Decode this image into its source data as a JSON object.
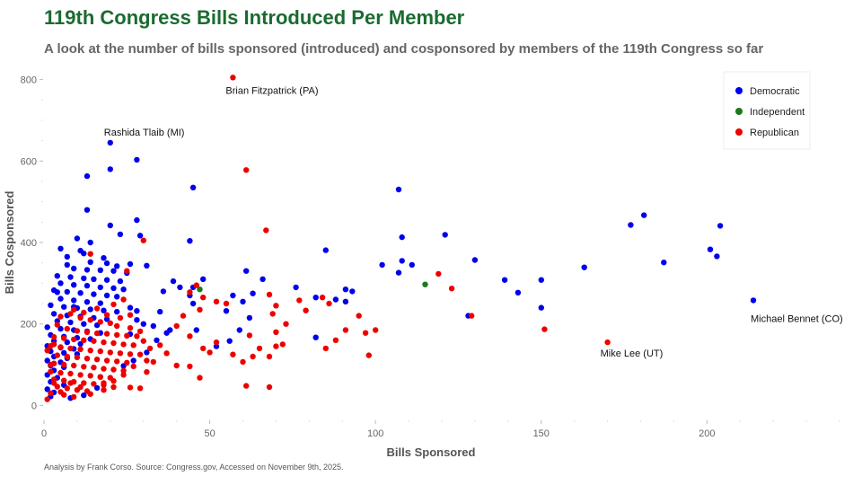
{
  "colors": {
    "title": "#1a6b2f",
    "Democratic": "#0000ee",
    "Independent": "#1a7a1a",
    "Republican": "#ee0000"
  },
  "chart_data": {
    "type": "scatter",
    "title": "119th Congress Bills Introduced Per Member",
    "subtitle": "A look at the number of bills sponsored (introduced) and cosponsored by members of the 119th Congress so far",
    "xlabel": "Bills Sponsored",
    "ylabel": "Bills Cosponsored",
    "xlim": [
      0,
      240
    ],
    "ylim": [
      -30,
      830
    ],
    "xticks": [
      0,
      50,
      100,
      150,
      200
    ],
    "yticks": [
      0,
      200,
      400,
      600,
      800
    ],
    "grid": false,
    "legend": {
      "position": "top-right",
      "entries": [
        "Democratic",
        "Independent",
        "Republican"
      ]
    },
    "caption": "Analysis by Frank Corso. Source: Congress.gov, Accessed on November 9th, 2025.",
    "annotations": [
      {
        "text": "Brian Fitzpatrick (PA)",
        "x": 57,
        "y": 805
      },
      {
        "text": "Rashida Tlaib (MI)",
        "x": 20,
        "y": 645
      },
      {
        "text": "Michael Bennet (CO)",
        "x": 214,
        "y": 258
      },
      {
        "text": "Mike Lee (UT)",
        "x": 170,
        "y": 155
      }
    ],
    "series": [
      {
        "name": "Democratic",
        "points": [
          [
            20,
            645
          ],
          [
            28,
            603
          ],
          [
            20,
            580
          ],
          [
            13,
            563
          ],
          [
            45,
            535
          ],
          [
            107,
            530
          ],
          [
            13,
            480
          ],
          [
            28,
            455
          ],
          [
            20,
            442
          ],
          [
            181,
            467
          ],
          [
            177,
            443
          ],
          [
            204,
            441
          ],
          [
            108,
            413
          ],
          [
            121,
            419
          ],
          [
            23,
            420
          ],
          [
            29,
            417
          ],
          [
            44,
            404
          ],
          [
            201,
            383
          ],
          [
            203,
            366
          ],
          [
            85,
            381
          ],
          [
            187,
            351
          ],
          [
            130,
            357
          ],
          [
            163,
            339
          ],
          [
            108,
            355
          ],
          [
            102,
            345
          ],
          [
            111,
            345
          ],
          [
            107,
            326
          ],
          [
            139,
            308
          ],
          [
            150,
            308
          ],
          [
            143,
            277
          ],
          [
            128,
            220
          ],
          [
            150,
            240
          ],
          [
            214,
            258
          ],
          [
            76,
            290
          ],
          [
            82,
            265
          ],
          [
            88,
            260
          ],
          [
            91,
            285
          ],
          [
            93,
            280
          ],
          [
            91,
            255
          ],
          [
            82,
            167
          ],
          [
            60,
            255
          ],
          [
            63,
            275
          ],
          [
            57,
            270
          ],
          [
            61,
            330
          ],
          [
            66,
            310
          ],
          [
            48,
            310
          ],
          [
            39,
            305
          ],
          [
            45,
            290
          ],
          [
            41,
            290
          ],
          [
            36,
            280
          ],
          [
            44,
            270
          ],
          [
            45,
            250
          ],
          [
            46,
            185
          ],
          [
            52,
            145
          ],
          [
            56,
            158
          ],
          [
            59,
            185
          ],
          [
            62,
            215
          ],
          [
            55,
            232
          ],
          [
            28,
            232
          ],
          [
            28,
            210
          ],
          [
            26,
            175
          ],
          [
            38,
            185
          ],
          [
            35,
            230
          ],
          [
            37,
            178
          ],
          [
            5,
            385
          ],
          [
            11,
            380
          ],
          [
            12,
            373
          ],
          [
            7,
            365
          ],
          [
            14,
            352
          ],
          [
            19,
            349
          ],
          [
            22,
            342
          ],
          [
            26,
            347
          ],
          [
            31,
            343
          ],
          [
            9,
            336
          ],
          [
            13,
            333
          ],
          [
            17,
            332
          ],
          [
            21,
            330
          ],
          [
            25,
            325
          ],
          [
            4,
            318
          ],
          [
            8,
            315
          ],
          [
            12,
            312
          ],
          [
            15,
            310
          ],
          [
            19,
            308
          ],
          [
            23,
            305
          ],
          [
            5,
            300
          ],
          [
            9,
            296
          ],
          [
            13,
            294
          ],
          [
            17,
            290
          ],
          [
            21,
            288
          ],
          [
            3,
            283
          ],
          [
            7,
            279
          ],
          [
            11,
            276
          ],
          [
            15,
            273
          ],
          [
            19,
            270
          ],
          [
            22,
            267
          ],
          [
            5,
            262
          ],
          [
            9,
            258
          ],
          [
            13,
            254
          ],
          [
            17,
            251
          ],
          [
            2,
            246
          ],
          [
            6,
            242
          ],
          [
            10,
            239
          ],
          [
            14,
            236
          ],
          [
            18,
            233
          ],
          [
            22,
            230
          ],
          [
            3,
            225
          ],
          [
            7,
            221
          ],
          [
            11,
            218
          ],
          [
            15,
            215
          ],
          [
            19,
            212
          ],
          [
            4,
            207
          ],
          [
            8,
            204
          ],
          [
            12,
            200
          ],
          [
            16,
            197
          ],
          [
            1,
            192
          ],
          [
            5,
            188
          ],
          [
            9,
            185
          ],
          [
            13,
            182
          ],
          [
            17,
            178
          ],
          [
            2,
            173
          ],
          [
            6,
            169
          ],
          [
            10,
            166
          ],
          [
            14,
            163
          ],
          [
            3,
            158
          ],
          [
            7,
            155
          ],
          [
            11,
            151
          ],
          [
            1,
            146
          ],
          [
            5,
            142
          ],
          [
            9,
            139
          ],
          [
            2,
            133
          ],
          [
            6,
            129
          ],
          [
            10,
            126
          ],
          [
            3,
            120
          ],
          [
            7,
            116
          ],
          [
            1,
            110
          ],
          [
            5,
            106
          ],
          [
            2,
            98
          ],
          [
            6,
            94
          ],
          [
            3,
            86
          ],
          [
            1,
            75
          ],
          [
            4,
            68
          ],
          [
            2,
            58
          ],
          [
            6,
            50
          ],
          [
            1,
            40
          ],
          [
            3,
            32
          ],
          [
            2,
            22
          ],
          [
            8,
            18
          ],
          [
            12,
            25
          ],
          [
            16,
            43
          ],
          [
            24,
            97
          ],
          [
            27,
            110
          ],
          [
            31,
            130
          ],
          [
            34,
            160
          ],
          [
            30,
            200
          ],
          [
            33,
            195
          ],
          [
            26,
            240
          ],
          [
            24,
            285
          ],
          [
            18,
            362
          ],
          [
            14,
            400
          ],
          [
            10,
            410
          ],
          [
            7,
            345
          ],
          [
            9,
            242
          ],
          [
            4,
            278
          ]
        ]
      },
      {
        "name": "Independent",
        "points": [
          [
            47,
            285
          ],
          [
            115,
            297
          ]
        ]
      },
      {
        "name": "Republican",
        "points": [
          [
            57,
            805
          ],
          [
            61,
            578
          ],
          [
            67,
            430
          ],
          [
            30,
            405
          ],
          [
            14,
            372
          ],
          [
            25,
            330
          ],
          [
            119,
            323
          ],
          [
            123,
            287
          ],
          [
            46,
            295
          ],
          [
            44,
            278
          ],
          [
            48,
            265
          ],
          [
            52,
            255
          ],
          [
            55,
            250
          ],
          [
            47,
            235
          ],
          [
            68,
            272
          ],
          [
            70,
            245
          ],
          [
            77,
            258
          ],
          [
            79,
            233
          ],
          [
            84,
            265
          ],
          [
            86,
            250
          ],
          [
            95,
            220
          ],
          [
            91,
            185
          ],
          [
            100,
            185
          ],
          [
            88,
            160
          ],
          [
            97,
            178
          ],
          [
            85,
            140
          ],
          [
            98,
            123
          ],
          [
            129,
            220
          ],
          [
            151,
            187
          ],
          [
            170,
            155
          ],
          [
            42,
            220
          ],
          [
            40,
            195
          ],
          [
            44,
            170
          ],
          [
            48,
            140
          ],
          [
            52,
            155
          ],
          [
            50,
            130
          ],
          [
            57,
            125
          ],
          [
            60,
            107
          ],
          [
            63,
            120
          ],
          [
            65,
            140
          ],
          [
            68,
            120
          ],
          [
            70,
            145
          ],
          [
            72,
            150
          ],
          [
            70,
            180
          ],
          [
            73,
            200
          ],
          [
            69,
            225
          ],
          [
            62,
            172
          ],
          [
            47,
            68
          ],
          [
            61,
            48
          ],
          [
            68,
            45
          ],
          [
            40,
            98
          ],
          [
            44,
            96
          ],
          [
            35,
            148
          ],
          [
            37,
            128
          ],
          [
            33,
            107
          ],
          [
            31,
            82
          ],
          [
            29,
            42
          ],
          [
            26,
            44
          ],
          [
            21,
            45
          ],
          [
            18,
            55
          ],
          [
            17,
            70
          ],
          [
            4,
            198
          ],
          [
            7,
            188
          ],
          [
            10,
            183
          ],
          [
            13,
            180
          ],
          [
            16,
            177
          ],
          [
            19,
            176
          ],
          [
            22,
            173
          ],
          [
            25,
            171
          ],
          [
            28,
            170
          ],
          [
            3,
            168
          ],
          [
            6,
            165
          ],
          [
            9,
            162
          ],
          [
            12,
            160
          ],
          [
            15,
            158
          ],
          [
            18,
            155
          ],
          [
            21,
            153
          ],
          [
            24,
            150
          ],
          [
            27,
            148
          ],
          [
            2,
            146
          ],
          [
            5,
            143
          ],
          [
            8,
            140
          ],
          [
            11,
            138
          ],
          [
            14,
            135
          ],
          [
            17,
            133
          ],
          [
            20,
            130
          ],
          [
            23,
            128
          ],
          [
            26,
            126
          ],
          [
            4,
            123
          ],
          [
            7,
            120
          ],
          [
            10,
            118
          ],
          [
            13,
            115
          ],
          [
            16,
            113
          ],
          [
            19,
            110
          ],
          [
            22,
            108
          ],
          [
            25,
            105
          ],
          [
            3,
            103
          ],
          [
            6,
            100
          ],
          [
            9,
            98
          ],
          [
            12,
            95
          ],
          [
            15,
            93
          ],
          [
            18,
            90
          ],
          [
            21,
            88
          ],
          [
            24,
            85
          ],
          [
            2,
            83
          ],
          [
            5,
            80
          ],
          [
            8,
            78
          ],
          [
            11,
            75
          ],
          [
            14,
            73
          ],
          [
            17,
            70
          ],
          [
            20,
            68
          ],
          [
            3,
            64
          ],
          [
            6,
            61
          ],
          [
            9,
            58
          ],
          [
            12,
            55
          ],
          [
            15,
            53
          ],
          [
            18,
            50
          ],
          [
            4,
            46
          ],
          [
            7,
            42
          ],
          [
            10,
            38
          ],
          [
            13,
            35
          ],
          [
            2,
            30
          ],
          [
            6,
            26
          ],
          [
            9,
            21
          ],
          [
            1,
            15
          ],
          [
            8,
            225
          ],
          [
            11,
            215
          ],
          [
            14,
            210
          ],
          [
            17,
            205
          ],
          [
            20,
            202
          ],
          [
            23,
            215
          ],
          [
            26,
            222
          ],
          [
            21,
            248
          ],
          [
            24,
            260
          ],
          [
            16,
            238
          ],
          [
            12,
            228
          ],
          [
            5,
            218
          ],
          [
            9,
            235
          ],
          [
            19,
            222
          ],
          [
            22,
            195
          ],
          [
            26,
            190
          ],
          [
            29,
            182
          ],
          [
            30,
            158
          ],
          [
            32,
            140
          ],
          [
            29,
            125
          ],
          [
            31,
            110
          ],
          [
            27,
            96
          ],
          [
            24,
            75
          ],
          [
            21,
            60
          ],
          [
            18,
            38
          ],
          [
            14,
            28
          ],
          [
            11,
            45
          ],
          [
            8,
            55
          ],
          [
            5,
            33
          ],
          [
            3,
            55
          ],
          [
            2,
            100
          ],
          [
            1,
            135
          ],
          [
            3,
            150
          ]
        ]
      }
    ]
  }
}
